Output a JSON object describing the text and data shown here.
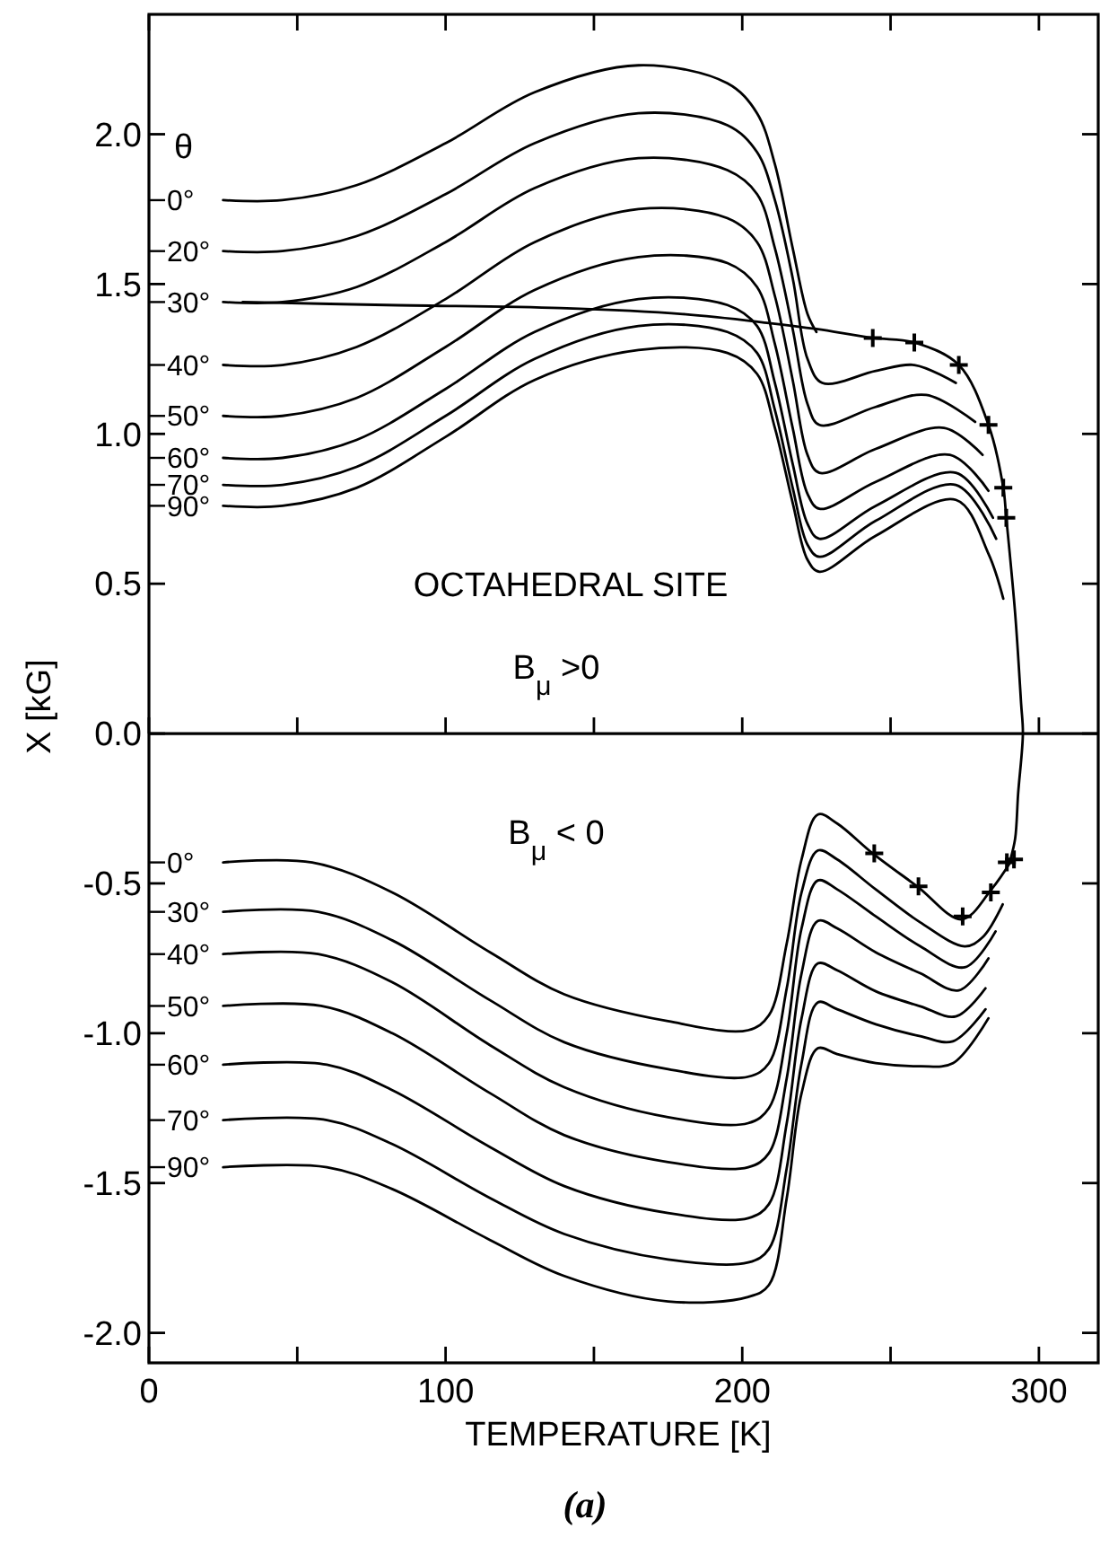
{
  "chart_data": {
    "type": "line",
    "xlabel": "TEMPERATURE [K]",
    "ylabel": "X [kG]",
    "legend_title": "θ",
    "xlim": [
      0,
      320
    ],
    "ylim": [
      -2.1,
      2.4
    ],
    "xticks": [
      0,
      {
        "value": 50,
        "label": null
      },
      100,
      {
        "value": 150,
        "label": null
      },
      200,
      {
        "value": 250,
        "label": null
      },
      300
    ],
    "yticks": [
      {
        "value": 2,
        "label": "2.0"
      },
      1.5,
      {
        "value": 1,
        "label": "1.0"
      },
      0.5,
      {
        "value": 0,
        "label": "0.0"
      },
      {
        "value": -0.5,
        "label": "-0.5"
      },
      {
        "value": -1,
        "label": "-1.0"
      },
      {
        "value": -1.5,
        "label": "-1.5"
      },
      {
        "value": -2,
        "label": "-2.0"
      }
    ],
    "ref_lines": [
      {
        "axis": "y",
        "value": 0,
        "color": "#000000"
      }
    ],
    "marker": "none",
    "line_style": "solid",
    "annotations": [
      "OCTAHEDRAL SITE",
      "B$_{μ}$ >0",
      "B$_{μ}$ < 0",
      "(a)"
    ],
    "series": [
      {
        "name": "0°",
        "color": "#000000",
        "x": [
          25,
          45,
          70,
          100,
          130,
          165,
          195,
          205,
          211,
          217,
          222,
          225
        ],
        "values": [
          1.78,
          1.78,
          1.83,
          1.97,
          2.14,
          2.23,
          2.17,
          2.07,
          1.9,
          1.62,
          1.4,
          1.34
        ]
      },
      {
        "name": "20°",
        "color": "#000000",
        "x": [
          25,
          45,
          70,
          100,
          130,
          165,
          195,
          205,
          211,
          217,
          222,
          227,
          245,
          258,
          272
        ],
        "values": [
          1.61,
          1.61,
          1.66,
          1.8,
          1.97,
          2.07,
          2.03,
          1.94,
          1.78,
          1.52,
          1.25,
          1.17,
          1.21,
          1.23,
          1.17
        ]
      },
      {
        "name": "30°",
        "color": "#000000",
        "x": [
          25,
          45,
          70,
          100,
          130,
          165,
          195,
          205,
          211,
          217,
          222,
          226,
          245,
          262,
          278.5
        ],
        "values": [
          1.44,
          1.44,
          1.49,
          1.64,
          1.82,
          1.92,
          1.88,
          1.8,
          1.62,
          1.35,
          1.1,
          1.03,
          1.09,
          1.13,
          1.04
        ]
      },
      {
        "name": "40°",
        "color": "#000000",
        "x": [
          25,
          45,
          70,
          100,
          130,
          165,
          195,
          205,
          211,
          217,
          222,
          226,
          245,
          268,
          281
        ],
        "values": [
          1.23,
          1.23,
          1.29,
          1.45,
          1.64,
          1.75,
          1.72,
          1.64,
          1.46,
          1.18,
          0.93,
          0.87,
          0.95,
          1.02,
          0.93
        ]
      },
      {
        "name": "50°",
        "color": "#000000",
        "x": [
          25,
          45,
          70,
          100,
          130,
          165,
          195,
          205,
          211,
          217,
          222,
          226,
          245,
          270,
          283
        ],
        "values": [
          1.06,
          1.06,
          1.12,
          1.29,
          1.48,
          1.59,
          1.57,
          1.49,
          1.3,
          1.02,
          0.8,
          0.75,
          0.84,
          0.93,
          0.81
        ]
      },
      {
        "name": "60°",
        "color": "#000000",
        "x": [
          25,
          45,
          70,
          100,
          130,
          165,
          195,
          205,
          211,
          217,
          222,
          226,
          245,
          272,
          284.5
        ],
        "values": [
          0.92,
          0.92,
          0.98,
          1.15,
          1.34,
          1.45,
          1.43,
          1.36,
          1.17,
          0.9,
          0.7,
          0.65,
          0.76,
          0.87,
          0.72
        ]
      },
      {
        "name": "70°",
        "color": "#000000",
        "x": [
          25,
          45,
          70,
          100,
          130,
          165,
          195,
          205,
          211,
          217,
          222,
          226,
          245,
          272,
          285.6
        ],
        "values": [
          0.83,
          0.83,
          0.89,
          1.06,
          1.25,
          1.36,
          1.34,
          1.27,
          1.08,
          0.82,
          0.63,
          0.59,
          0.71,
          0.83,
          0.65
        ]
      },
      {
        "name": "90°",
        "color": "#000000",
        "x": [
          25,
          45,
          70,
          100,
          130,
          165,
          195,
          205,
          211,
          217,
          222,
          226,
          245,
          272,
          283,
          288
        ],
        "values": [
          0.76,
          0.76,
          0.82,
          0.99,
          1.18,
          1.28,
          1.27,
          1.2,
          1.02,
          0.77,
          0.58,
          0.54,
          0.66,
          0.78,
          0.6,
          0.45
        ]
      },
      {
        "color": "#000000",
        "x": [
          31.6,
          80,
          138.7,
          180,
          209,
          225,
          244,
          258,
          273,
          283,
          288,
          289,
          292,
          294,
          294.6,
          293,
          292,
          290.4
        ],
        "values": [
          1.44,
          1.43,
          1.42,
          1.4,
          1.37,
          1.35,
          1.32,
          1.305,
          1.23,
          1.03,
          0.82,
          0.72,
          0.4,
          0.1,
          0,
          -0.2,
          -0.35,
          -0.42
        ]
      },
      {
        "type": "scatter",
        "marker": "cross",
        "color": "#000000",
        "x": [
          244,
          258,
          273,
          283,
          288,
          289,
          244.5,
          259.4,
          274.3,
          283.8,
          289.2,
          291.6
        ],
        "values": [
          1.32,
          1.305,
          1.23,
          1.03,
          0.82,
          0.72,
          -0.4,
          -0.51,
          -0.61,
          -0.53,
          -0.43,
          -0.42
        ]
      },
      {
        "name": "0°",
        "color": "#000000",
        "x": [
          25,
          55,
          82,
          115,
          140,
          175,
          202,
          209,
          215,
          220,
          225.5,
          232,
          244,
          259,
          274,
          284,
          291
        ],
        "values": [
          -0.43,
          -0.43,
          -0.53,
          -0.73,
          -0.87,
          -0.96,
          -0.99,
          -0.94,
          -0.7,
          -0.42,
          -0.27,
          -0.3,
          -0.4,
          -0.51,
          -0.62,
          -0.52,
          -0.42
        ]
      },
      {
        "name": "30°",
        "color": "#000000",
        "x": [
          25,
          57,
          82,
          115,
          140,
          175,
          202,
          209,
          215,
          220,
          225.5,
          232,
          245,
          260,
          275,
          281,
          287.8
        ],
        "values": [
          -0.595,
          -0.595,
          -0.69,
          -0.89,
          -1.03,
          -1.12,
          -1.145,
          -1.1,
          -0.85,
          -0.53,
          -0.39,
          -0.42,
          -0.52,
          -0.63,
          -0.71,
          -0.68,
          -0.57
        ]
      },
      {
        "name": "40°",
        "color": "#000000",
        "x": [
          25,
          57,
          82,
          115,
          140,
          175,
          202,
          209,
          215,
          220,
          225.5,
          232,
          245,
          260,
          275,
          285.4
        ],
        "values": [
          -0.736,
          -0.736,
          -0.83,
          -1.04,
          -1.18,
          -1.28,
          -1.3,
          -1.25,
          -1,
          -0.65,
          -0.49,
          -0.52,
          -0.61,
          -0.71,
          -0.78,
          -0.66
        ]
      },
      {
        "name": "50°",
        "color": "#000000",
        "x": [
          25,
          58,
          82,
          115,
          140,
          175,
          202,
          209,
          215,
          220,
          225.5,
          232,
          245,
          260,
          273,
          283
        ],
        "values": [
          -0.909,
          -0.909,
          -1,
          -1.2,
          -1.34,
          -1.43,
          -1.447,
          -1.4,
          -1.15,
          -0.8,
          -0.625,
          -0.65,
          -0.73,
          -0.8,
          -0.857,
          -0.75
        ]
      },
      {
        "name": "60°",
        "color": "#000000",
        "x": [
          25,
          60,
          82,
          115,
          140,
          175,
          202,
          209,
          215,
          220,
          225.5,
          232,
          245,
          260,
          272,
          282
        ],
        "values": [
          -1.105,
          -1.105,
          -1.19,
          -1.38,
          -1.51,
          -1.6,
          -1.617,
          -1.57,
          -1.3,
          -0.95,
          -0.767,
          -0.79,
          -0.86,
          -0.91,
          -0.944,
          -0.85
        ]
      },
      {
        "name": "70°",
        "color": "#000000",
        "x": [
          25,
          60,
          82,
          115,
          140,
          175,
          202,
          209,
          215,
          220,
          225.5,
          232,
          245,
          260,
          271,
          282
        ],
        "values": [
          -1.29,
          -1.29,
          -1.37,
          -1.55,
          -1.67,
          -1.755,
          -1.765,
          -1.72,
          -1.45,
          -1.1,
          -0.897,
          -0.92,
          -0.97,
          -1.01,
          -1.027,
          -0.92
        ]
      },
      {
        "name": "90°",
        "color": "#000000",
        "x": [
          25,
          60,
          82,
          115,
          140,
          175,
          202,
          209,
          215,
          220,
          225.5,
          232,
          245,
          260,
          271,
          283
        ],
        "values": [
          -1.447,
          -1.447,
          -1.52,
          -1.69,
          -1.81,
          -1.895,
          -1.88,
          -1.84,
          -1.55,
          -1.2,
          -1.05,
          -1.07,
          -1.1,
          -1.11,
          -1.1,
          -0.95
        ]
      }
    ]
  }
}
